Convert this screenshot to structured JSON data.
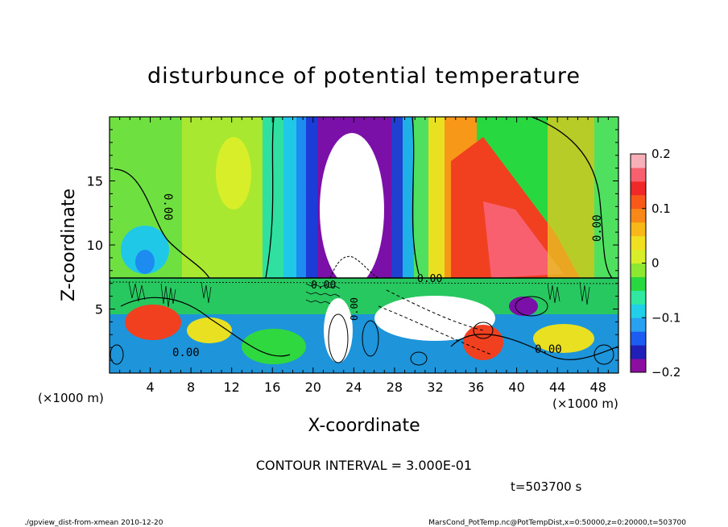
{
  "chart_data": {
    "type": "heatmap",
    "title": "disturbunce of potential temperature",
    "xlabel": "X-coordinate",
    "ylabel": "Z-coordinate",
    "x_unit": "(×1000 m)",
    "y_unit": "(×1000 m)",
    "xlim": [
      0,
      50
    ],
    "ylim": [
      0,
      20
    ],
    "x_ticks": [
      4,
      8,
      12,
      16,
      20,
      24,
      28,
      32,
      36,
      40,
      44,
      48
    ],
    "y_ticks": [
      5,
      10,
      15
    ],
    "colorbar": {
      "ticks": [
        0.2,
        0.1,
        0,
        -0.1,
        -0.2
      ],
      "tick_labels": [
        "0.2",
        "0.1",
        "0",
        "−0.1",
        "−0.2"
      ],
      "range": [
        -0.2,
        0.2
      ],
      "colors": [
        "#8b0ea0",
        "#2020b8",
        "#1c5cf0",
        "#2aa0f0",
        "#20d0e8",
        "#30e8a0",
        "#28d840",
        "#8ce830",
        "#d8ee28",
        "#f0e020",
        "#f8b818",
        "#f88818",
        "#f85818",
        "#f02828",
        "#f86070",
        "#f8b0b8"
      ]
    },
    "contour_labels": [
      "0.00",
      "0.00",
      "0.00",
      "0.00",
      "0.00",
      "0.00",
      "0.00"
    ],
    "contour_interval": "CONTOUR INTERVAL = 3.000E-01",
    "time_label": "t=503700 s"
  },
  "footer": {
    "left": "./gpview_dist-from-xmean  2010-12-20",
    "right": "MarsCond_PotTemp.nc@PotTempDist,x=0:50000,z=0:20000,t=503700"
  }
}
